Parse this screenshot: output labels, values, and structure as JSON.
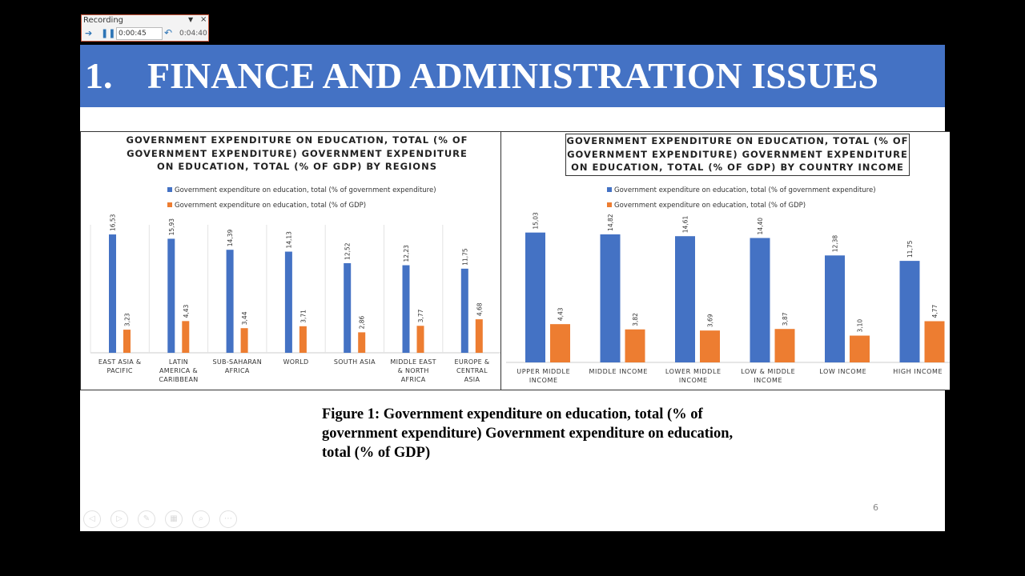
{
  "recorder": {
    "title": "Recording",
    "elapsed": "0:00:45",
    "total": "0:04:40"
  },
  "slide": {
    "number_prefix": "1.",
    "title": "FINANCE AND ADMINISTRATION ISSUES",
    "page_number": "6",
    "caption": "Figure 1: Government expenditure on education, total (% of government expenditure) Government expenditure on education, total (% of GDP)"
  },
  "colors": {
    "banner": "#4472c4",
    "series1": "#4472c4",
    "series2": "#ed7d31"
  },
  "chart_data": [
    {
      "type": "bar",
      "title": "GOVERNMENT EXPENDITURE ON EDUCATION, TOTAL (% OF GOVERNMENT EXPENDITURE) GOVERNMENT EXPENDITURE ON EDUCATION, TOTAL (% OF GDP) BY REGIONS",
      "categories": [
        "EAST ASIA & PACIFIC",
        "LATIN AMERICA & CARIBBEAN",
        "SUB-SAHARAN AFRICA",
        "WORLD",
        "SOUTH ASIA",
        "MIDDLE EAST & NORTH AFRICA",
        "EUROPE & CENTRAL ASIA"
      ],
      "series": [
        {
          "name": "Government expenditure on education, total (% of government expenditure)",
          "values": [
            16.53,
            15.93,
            14.39,
            14.13,
            12.52,
            12.23,
            11.75
          ],
          "labels": [
            "16,53",
            "15,93",
            "14,39",
            "14,13",
            "12,52",
            "12,23",
            "11,75"
          ]
        },
        {
          "name": "Government expenditure on education, total (% of GDP)",
          "values": [
            3.23,
            4.43,
            3.44,
            3.71,
            2.86,
            3.77,
            4.68
          ],
          "labels": [
            "3,23",
            "4,43",
            "3,44",
            "3,71",
            "2,86",
            "3,77",
            "4,68"
          ]
        }
      ],
      "legend": "top",
      "grid": "vertical separators"
    },
    {
      "type": "bar",
      "title": "GOVERNMENT EXPENDITURE ON EDUCATION, TOTAL (% OF GOVERNMENT EXPENDITURE) GOVERNMENT EXPENDITURE ON EDUCATION, TOTAL (% OF GDP) BY COUNTRY INCOME",
      "categories": [
        "UPPER MIDDLE INCOME",
        "MIDDLE INCOME",
        "LOWER MIDDLE INCOME",
        "LOW & MIDDLE INCOME",
        "LOW INCOME",
        "HIGH INCOME"
      ],
      "series": [
        {
          "name": "Government expenditure on education, total (% of government expenditure)",
          "values": [
            15.03,
            14.82,
            14.61,
            14.4,
            12.38,
            11.75
          ],
          "labels": [
            "15,03",
            "14,82",
            "14,61",
            "14,40",
            "12,38",
            "11,75"
          ]
        },
        {
          "name": "Government expenditure on education, total (% of GDP)",
          "values": [
            4.43,
            3.82,
            3.69,
            3.87,
            3.1,
            4.77
          ],
          "labels": [
            "4,43",
            "3,82",
            "3,69",
            "3,87",
            "3,10",
            "4,77"
          ]
        }
      ],
      "legend": "top",
      "grid": "none"
    }
  ]
}
